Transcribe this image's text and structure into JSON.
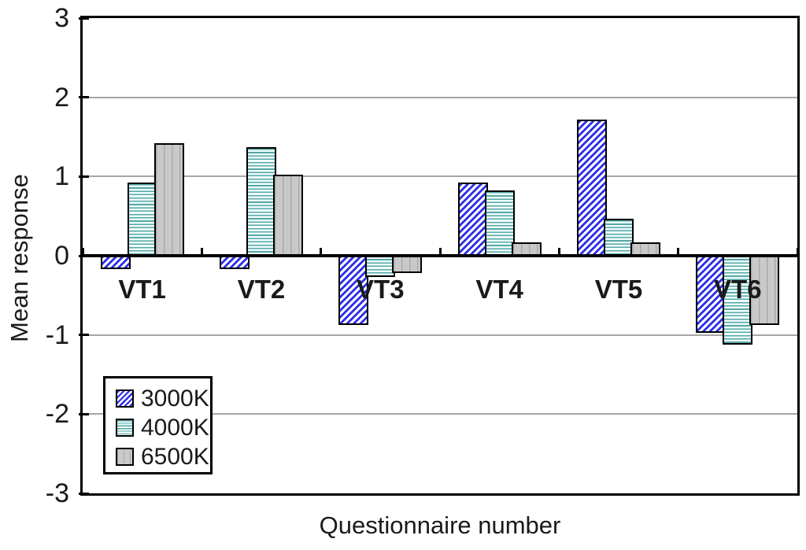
{
  "chart_data": {
    "type": "bar",
    "title": "",
    "xlabel": "Questionnaire number",
    "ylabel": "Mean response",
    "categories": [
      "VT1",
      "VT2",
      "VT3",
      "VT4",
      "VT5",
      "VT6"
    ],
    "series": [
      {
        "name": "3000K",
        "pattern": "diagonal-hatch",
        "line_color": "#2d2de8",
        "fill_color": "#ffffff",
        "values": [
          -0.15,
          -0.15,
          -0.85,
          0.9,
          1.7,
          -0.95
        ]
      },
      {
        "name": "4000K",
        "pattern": "horizontal-lines",
        "line_color": "#55a8a8",
        "fill_color": "#f0fbfb",
        "values": [
          0.9,
          1.35,
          -0.25,
          0.8,
          0.45,
          -1.1
        ]
      },
      {
        "name": "6500K",
        "pattern": "vertical-streak",
        "line_color": "#aaaaaa",
        "fill_color": "#c9c9c9",
        "values": [
          1.4,
          1.0,
          -0.2,
          0.15,
          0.15,
          -0.85
        ]
      }
    ],
    "ylim": [
      -3,
      3
    ],
    "yticks": [
      3,
      2,
      1,
      0,
      -1,
      -2,
      -3
    ],
    "grid": true,
    "gridline_color": "#a6a6a6",
    "axis_color": "#000000",
    "legend_position": "inside-bottom-left",
    "legend_labels": [
      "3000K",
      "4000K",
      "6500K"
    ]
  }
}
